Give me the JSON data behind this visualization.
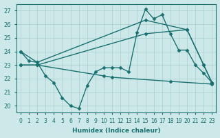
{
  "series": [
    {
      "name": "main_curve",
      "x": [
        0,
        1,
        2,
        3,
        4,
        5,
        6,
        7,
        8,
        9,
        10,
        11,
        12,
        13,
        14,
        15,
        16,
        17,
        18,
        19,
        20,
        21,
        22,
        23
      ],
      "y": [
        24.0,
        23.3,
        23.2,
        22.2,
        21.7,
        20.6,
        20.0,
        19.8,
        21.5,
        22.5,
        22.8,
        22.8,
        22.8,
        22.5,
        25.4,
        27.1,
        26.4,
        26.7,
        25.3,
        24.1,
        24.1,
        23.0,
        22.4,
        21.7
      ],
      "color": "#1a7070",
      "marker": "D",
      "markersize": 2.5,
      "linewidth": 1.0
    },
    {
      "name": "line_high",
      "x": [
        0,
        2,
        15,
        20,
        22,
        23
      ],
      "y": [
        24.0,
        23.2,
        26.3,
        25.6,
        23.0,
        21.7
      ],
      "color": "#1a7070",
      "marker": "D",
      "markersize": 2.5,
      "linewidth": 1.0
    },
    {
      "name": "line_mid",
      "x": [
        0,
        2,
        10,
        11,
        18,
        23
      ],
      "y": [
        23.0,
        23.0,
        22.2,
        22.1,
        21.8,
        21.6
      ],
      "color": "#1a7070",
      "marker": "D",
      "markersize": 2.5,
      "linewidth": 1.0
    },
    {
      "name": "line_upper_diag",
      "x": [
        0,
        2,
        15,
        20,
        22,
        23
      ],
      "y": [
        23.0,
        23.0,
        25.3,
        25.6,
        23.0,
        21.7
      ],
      "color": "#1a7070",
      "marker": "D",
      "markersize": 2.5,
      "linewidth": 1.0
    }
  ],
  "xlabel": "Humidex (Indice chaleur)",
  "ylabel": "",
  "xlim": [
    -0.5,
    23.5
  ],
  "ylim": [
    19.5,
    27.5
  ],
  "yticks": [
    20,
    21,
    22,
    23,
    24,
    25,
    26,
    27
  ],
  "xticks": [
    0,
    1,
    2,
    3,
    4,
    5,
    6,
    7,
    8,
    9,
    10,
    11,
    12,
    13,
    14,
    15,
    16,
    17,
    18,
    19,
    20,
    21,
    22,
    23
  ],
  "bg_color": "#cce8e8",
  "grid_color": "#aacfcf",
  "line_color": "#1a7070",
  "tick_color": "#1a7070",
  "label_color": "#1a7070"
}
